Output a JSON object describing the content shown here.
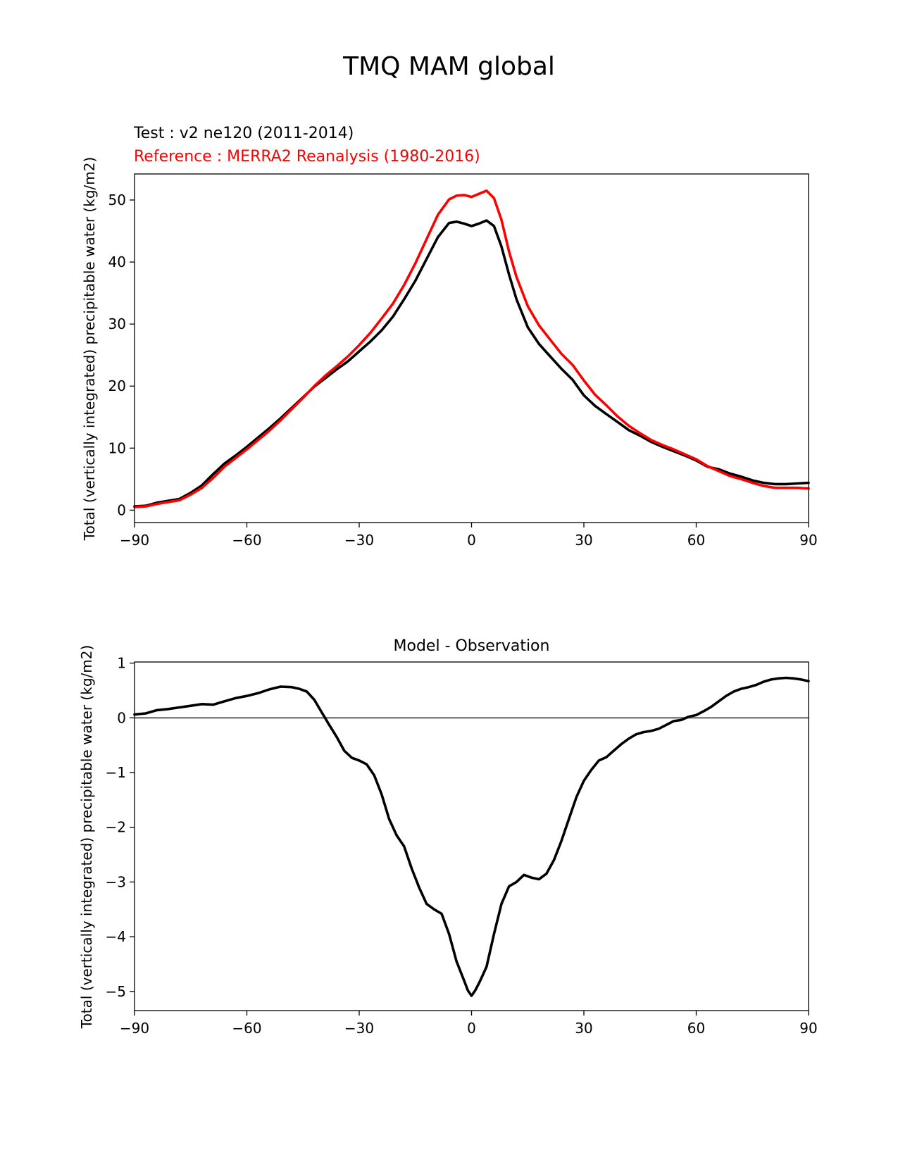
{
  "figure": {
    "title": "TMQ MAM global"
  },
  "chart_data": [
    {
      "type": "line",
      "title_test": "Test : v2 ne120 (2011-2014)",
      "title_reference": "Reference : MERRA2 Reanalysis (1980-2016)",
      "xlabel": "",
      "ylabel": "Total (vertically integrated) precipitable water (kg/m2)",
      "xlim": [
        -90,
        90
      ],
      "ylim": [
        -2,
        54.2
      ],
      "xticks": [
        -90,
        -60,
        -30,
        0,
        30,
        60,
        90
      ],
      "xtick_labels": [
        "−90",
        "−60",
        "−30",
        "0",
        "30",
        "60",
        "90"
      ],
      "yticks": [
        0,
        10,
        20,
        30,
        40,
        50
      ],
      "ytick_labels": [
        "0",
        "10",
        "20",
        "30",
        "40",
        "50"
      ],
      "x": [
        -90,
        -87,
        -84,
        -81,
        -78,
        -75,
        -72,
        -69,
        -66,
        -63,
        -60,
        -57,
        -54,
        -51,
        -48,
        -45,
        -42,
        -39,
        -36,
        -33,
        -30,
        -27,
        -24,
        -21,
        -18,
        -15,
        -12,
        -9,
        -6,
        -4,
        -2,
        0,
        2,
        4,
        6,
        8,
        10,
        12,
        15,
        18,
        21,
        24,
        27,
        30,
        33,
        36,
        39,
        42,
        45,
        48,
        51,
        54,
        57,
        60,
        63,
        66,
        69,
        72,
        75,
        78,
        81,
        84,
        87,
        90
      ],
      "series": [
        {
          "name": "test",
          "color": "#000000",
          "values": [
            0.6,
            0.7,
            1.2,
            1.5,
            1.8,
            2.8,
            4.0,
            5.8,
            7.5,
            8.8,
            10.2,
            11.7,
            13.2,
            14.8,
            16.5,
            18.2,
            19.9,
            21.3,
            22.7,
            24.0,
            25.6,
            27.2,
            29.0,
            31.2,
            34.0,
            37.0,
            40.5,
            44.0,
            46.3,
            46.5,
            46.2,
            45.8,
            46.2,
            46.7,
            45.8,
            42.5,
            38.0,
            34.0,
            29.5,
            26.8,
            24.8,
            22.8,
            21.0,
            18.5,
            16.8,
            15.5,
            14.2,
            12.9,
            12.0,
            11.0,
            10.2,
            9.5,
            8.8,
            8.0,
            7.0,
            6.6,
            5.9,
            5.4,
            4.8,
            4.4,
            4.2,
            4.2,
            4.3,
            4.4
          ]
        },
        {
          "name": "reference",
          "color": "#ff0000",
          "values": [
            0.5,
            0.6,
            1.0,
            1.3,
            1.6,
            2.5,
            3.6,
            5.2,
            7.0,
            8.4,
            9.8,
            11.3,
            12.8,
            14.5,
            16.3,
            18.1,
            20.0,
            21.7,
            23.2,
            24.8,
            26.6,
            28.6,
            30.9,
            33.3,
            36.3,
            39.8,
            43.7,
            47.6,
            50.1,
            50.7,
            50.8,
            50.5,
            51.0,
            51.5,
            50.3,
            46.8,
            41.7,
            37.6,
            32.9,
            29.8,
            27.5,
            25.2,
            23.4,
            20.9,
            18.6,
            16.9,
            15.1,
            13.6,
            12.4,
            11.3,
            10.5,
            9.8,
            9.0,
            8.2,
            7.1,
            6.3,
            5.5,
            5.0,
            4.4,
            3.9,
            3.6,
            3.6,
            3.6,
            3.5
          ]
        }
      ]
    },
    {
      "type": "line",
      "title": "Model - Observation",
      "xlabel": "",
      "ylabel": "Total (vertically integrated) precipitable water (kg/m2)",
      "xlim": [
        -90,
        90
      ],
      "ylim": [
        -5.35,
        1.02
      ],
      "xticks": [
        -90,
        -60,
        -30,
        0,
        30,
        60,
        90
      ],
      "xtick_labels": [
        "−90",
        "−60",
        "−30",
        "0",
        "30",
        "60",
        "90"
      ],
      "yticks": [
        1,
        0,
        -1,
        -2,
        -3,
        -4,
        -5
      ],
      "ytick_labels": [
        "1",
        "0",
        "−1",
        "−2",
        "−3",
        "−4",
        "−5"
      ],
      "zero_line": {
        "y": 0,
        "color": "#808080"
      },
      "x": [
        -90,
        -87,
        -84,
        -81,
        -78,
        -75,
        -72,
        -69,
        -66,
        -63,
        -60,
        -57,
        -54,
        -51,
        -48,
        -46,
        -44,
        -42,
        -40,
        -38,
        -36,
        -34,
        -32,
        -30,
        -28,
        -26,
        -24,
        -22,
        -20,
        -18,
        -16,
        -14,
        -12,
        -10,
        -8,
        -6,
        -4,
        -2,
        -1,
        0,
        1,
        2,
        3,
        4,
        6,
        8,
        10,
        12,
        14,
        16,
        18,
        20,
        22,
        24,
        26,
        28,
        30,
        32,
        34,
        36,
        38,
        40,
        42,
        44,
        46,
        48,
        50,
        52,
        54,
        56,
        58,
        60,
        62,
        64,
        66,
        68,
        70,
        72,
        74,
        76,
        78,
        80,
        82,
        84,
        86,
        88,
        90
      ],
      "series": [
        {
          "name": "Model - Observation",
          "color": "#000000",
          "values": [
            0.06,
            0.08,
            0.14,
            0.16,
            0.19,
            0.22,
            0.25,
            0.24,
            0.3,
            0.36,
            0.4,
            0.45,
            0.52,
            0.57,
            0.56,
            0.53,
            0.48,
            0.33,
            0.1,
            -0.13,
            -0.35,
            -0.6,
            -0.73,
            -0.78,
            -0.85,
            -1.05,
            -1.4,
            -1.85,
            -2.15,
            -2.35,
            -2.75,
            -3.1,
            -3.4,
            -3.5,
            -3.58,
            -3.95,
            -4.45,
            -4.8,
            -4.98,
            -5.08,
            -4.98,
            -4.85,
            -4.7,
            -4.55,
            -3.95,
            -3.4,
            -3.08,
            -3.0,
            -2.87,
            -2.92,
            -2.95,
            -2.85,
            -2.6,
            -2.25,
            -1.85,
            -1.45,
            -1.15,
            -0.95,
            -0.78,
            -0.72,
            -0.6,
            -0.48,
            -0.38,
            -0.3,
            -0.26,
            -0.24,
            -0.2,
            -0.13,
            -0.06,
            -0.04,
            0.02,
            0.05,
            0.12,
            0.2,
            0.3,
            0.4,
            0.48,
            0.53,
            0.56,
            0.6,
            0.66,
            0.7,
            0.72,
            0.73,
            0.72,
            0.7,
            0.67
          ]
        }
      ]
    }
  ]
}
